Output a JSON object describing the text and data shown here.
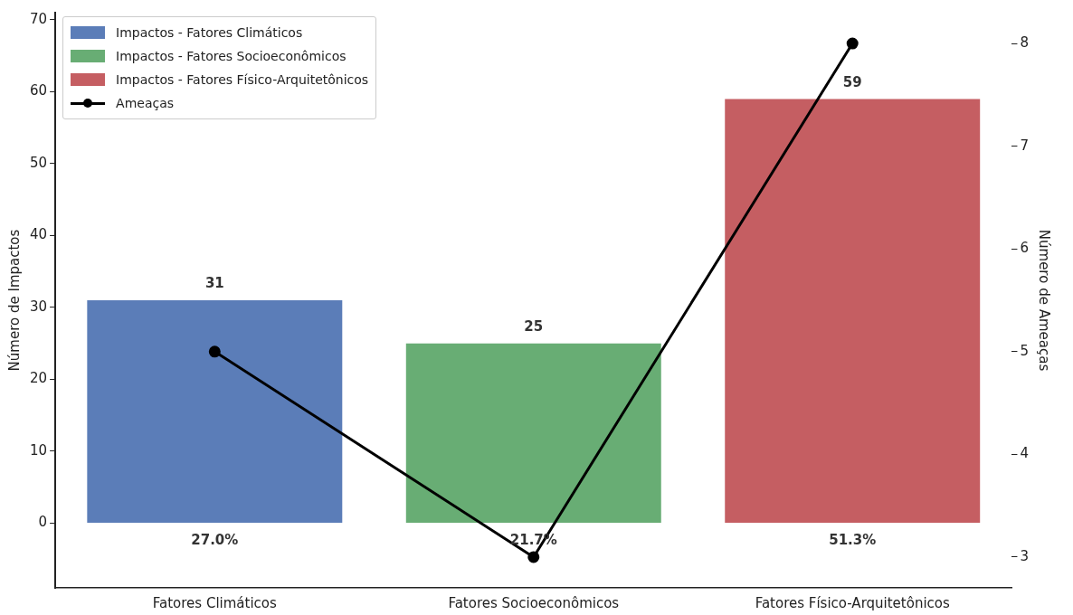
{
  "chart_data": {
    "type": "bar",
    "ylabel": "Número de Impactos",
    "y2label": "Número de Ameaças",
    "categories": [
      "Fatores Climáticos",
      "Fatores Socioeconômicos",
      "Fatores Físico-Arquitetônicos"
    ],
    "series": [
      {
        "name": "Impactos - Fatores Climáticos",
        "color": "#5b7db8",
        "values": [
          31,
          null,
          null
        ],
        "value_labels": [
          "31",
          null,
          null
        ]
      },
      {
        "name": "Impactos - Fatores Socioeconômicos",
        "color": "#68ad74",
        "values": [
          null,
          25,
          null
        ],
        "value_labels": [
          null,
          "25",
          null
        ]
      },
      {
        "name": "Impactos - Fatores Físico-Arquitetônicos",
        "color": "#c55e62",
        "values": [
          null,
          null,
          59
        ],
        "value_labels": [
          null,
          null,
          "59"
        ]
      },
      {
        "name": "Ameaças",
        "type": "line",
        "axis": "y2",
        "color": "#000000",
        "values": [
          5,
          3,
          8
        ],
        "marker": "circle"
      }
    ],
    "ylim": [
      -9,
      71
    ],
    "yticks": [
      0,
      10,
      20,
      30,
      40,
      50,
      60,
      70
    ],
    "y2lim": [
      2.7,
      8.3
    ],
    "y2ticks": [
      3,
      4,
      5,
      6,
      7,
      8
    ],
    "annotations": [
      {
        "text": "27.0%",
        "x": "Fatores Climáticos",
        "y": 0
      },
      {
        "text": "21.7%",
        "x": "Fatores Socioeconômicos",
        "y": 0
      },
      {
        "text": "51.3%",
        "x": "Fatores Físico-Arquitetônicos",
        "y": 0
      }
    ],
    "grid": false,
    "legend": "top left"
  }
}
